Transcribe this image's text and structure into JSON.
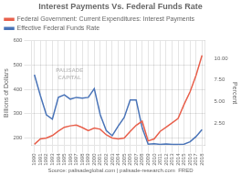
{
  "chart_data": {
    "type": "line",
    "title": "Interest Payments Vs. Federal Funds Rate",
    "ylabel": "Billions of Dollars",
    "y2label": "Percent",
    "source": "Source: palisadeglobal.com | palisade-research.com  FRED",
    "annotations": [
      "PALISADE\nCAPITAL"
    ],
    "x": [
      1990,
      1991,
      1992,
      1993,
      1994,
      1995,
      1996,
      1997,
      1998,
      1999,
      2000,
      2001,
      2002,
      2003,
      2004,
      2005,
      2006,
      2007,
      2008,
      2009,
      2010,
      2011,
      2012,
      2013,
      2014,
      2015,
      2016,
      2017,
      2018
    ],
    "xlim": [
      1989.5,
      2018.5
    ],
    "xticks": [
      1990,
      1991,
      1992,
      1993,
      1994,
      1995,
      1996,
      1997,
      1998,
      1999,
      2000,
      2001,
      2002,
      2003,
      2004,
      2005,
      2006,
      2007,
      2008,
      2009,
      2010,
      2011,
      2012,
      2013,
      2014,
      2015,
      2016,
      2017,
      2018
    ],
    "ylim": [
      170,
      600
    ],
    "yticks": [
      200,
      300,
      400,
      500,
      600
    ],
    "y2lim": [
      0,
      12
    ],
    "y2ticks": [
      {
        "value": 2.5,
        "label": "2.50"
      },
      {
        "value": 5,
        "label": "5.00"
      },
      {
        "value": 7.5,
        "label": "7.50"
      },
      {
        "value": 10,
        "label": "10.00"
      }
    ],
    "series": [
      {
        "name": "Federal Government: Current Expenditures: Interest Payments",
        "color": "#e8604c",
        "values": [
          174,
          196,
          200,
          210,
          228,
          244,
          250,
          253,
          243,
          230,
          241,
          236,
          213,
          200,
          196,
          200,
          227,
          252,
          269,
          188,
          196,
          227,
          244,
          262,
          280,
          338,
          390,
          458,
          540
        ]
      },
      {
        "name": "Effective Federal Funds Rate",
        "color": "#4a74b8",
        "axis": "y2",
        "values": [
          8.1,
          5.7,
          3.5,
          3.0,
          5.5,
          5.8,
          5.3,
          5.5,
          5.4,
          5.5,
          6.5,
          3.5,
          1.7,
          1.1,
          2.2,
          3.2,
          5.2,
          5.2,
          2.0,
          0.12,
          0.18,
          0.1,
          0.14,
          0.11,
          0.09,
          0.13,
          0.4,
          1.0,
          1.8
        ]
      }
    ],
    "grid": true,
    "legend": "upper left"
  }
}
